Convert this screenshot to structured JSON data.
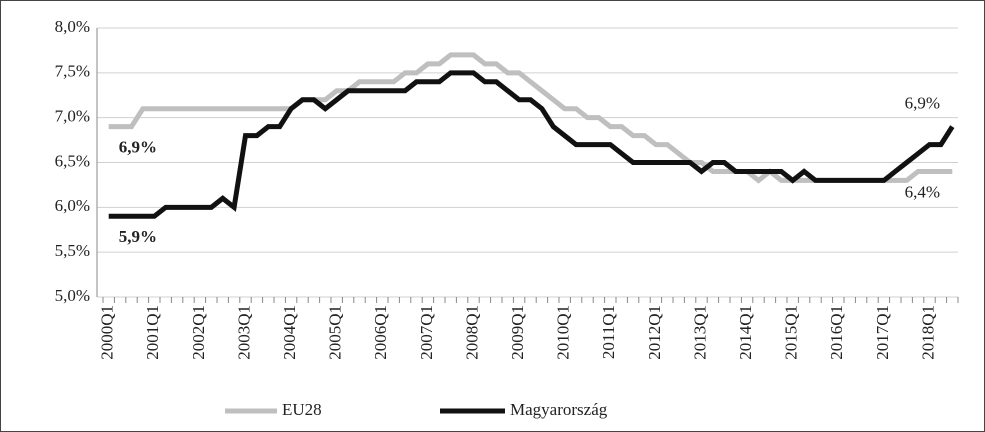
{
  "chart_data": {
    "type": "line",
    "categories": [
      "2000Q1",
      null,
      null,
      null,
      "2001Q1",
      null,
      null,
      null,
      "2002Q1",
      null,
      null,
      null,
      "2003Q1",
      null,
      null,
      null,
      "2004Q1",
      null,
      null,
      null,
      "2005Q1",
      null,
      null,
      null,
      "2006Q1",
      null,
      null,
      null,
      "2007Q1",
      null,
      null,
      null,
      "2008Q1",
      null,
      null,
      null,
      "2009Q1",
      null,
      null,
      null,
      "2010Q1",
      null,
      null,
      null,
      "2011Q1",
      null,
      null,
      null,
      "2012Q1",
      null,
      null,
      null,
      "2013Q1",
      null,
      null,
      null,
      "2014Q1",
      null,
      null,
      null,
      "2015Q1",
      null,
      null,
      null,
      "2016Q1",
      null,
      null,
      null,
      "2017Q1",
      null,
      null,
      null,
      "2018Q1",
      null,
      null
    ],
    "series": [
      {
        "name": "EU28",
        "color": "#bfbfbf",
        "values": [
          6.9,
          6.9,
          6.9,
          7.1,
          7.1,
          7.1,
          7.1,
          7.1,
          7.1,
          7.1,
          7.1,
          7.1,
          7.1,
          7.1,
          7.1,
          7.1,
          7.1,
          7.2,
          7.2,
          7.2,
          7.3,
          7.3,
          7.4,
          7.4,
          7.4,
          7.4,
          7.5,
          7.5,
          7.6,
          7.6,
          7.7,
          7.7,
          7.7,
          7.6,
          7.6,
          7.5,
          7.5,
          7.4,
          7.3,
          7.2,
          7.1,
          7.1,
          7.0,
          7.0,
          6.9,
          6.9,
          6.8,
          6.8,
          6.7,
          6.7,
          6.6,
          6.5,
          6.5,
          6.4,
          6.4,
          6.4,
          6.4,
          6.3,
          6.4,
          6.3,
          6.3,
          6.3,
          6.3,
          6.3,
          6.3,
          6.3,
          6.3,
          6.3,
          6.3,
          6.3,
          6.3,
          6.4,
          6.4,
          6.4,
          6.4
        ],
        "value_labels": [
          "6,9%",
          null,
          null,
          null,
          null,
          null,
          null,
          null,
          null,
          null,
          null,
          null,
          null,
          null,
          null,
          null,
          null,
          null,
          null,
          null,
          null,
          null,
          null,
          null,
          null,
          null,
          null,
          null,
          null,
          null,
          null,
          null,
          null,
          null,
          null,
          null,
          null,
          null,
          null,
          null,
          null,
          null,
          null,
          null,
          null,
          null,
          null,
          null,
          null,
          null,
          null,
          null,
          null,
          null,
          null,
          null,
          null,
          null,
          null,
          null,
          null,
          null,
          null,
          null,
          null,
          null,
          null,
          null,
          null,
          null,
          null,
          null,
          null,
          null,
          "6,4%"
        ]
      },
      {
        "name": "Magyarország",
        "color": "#111111",
        "values": [
          5.9,
          5.9,
          5.9,
          5.9,
          5.9,
          6.0,
          6.0,
          6.0,
          6.0,
          6.0,
          6.1,
          6.0,
          6.8,
          6.8,
          6.9,
          6.9,
          7.1,
          7.2,
          7.2,
          7.1,
          7.2,
          7.3,
          7.3,
          7.3,
          7.3,
          7.3,
          7.3,
          7.4,
          7.4,
          7.4,
          7.5,
          7.5,
          7.5,
          7.4,
          7.4,
          7.3,
          7.2,
          7.2,
          7.1,
          6.9,
          6.8,
          6.7,
          6.7,
          6.7,
          6.7,
          6.6,
          6.5,
          6.5,
          6.5,
          6.5,
          6.5,
          6.5,
          6.4,
          6.5,
          6.5,
          6.4,
          6.4,
          6.4,
          6.4,
          6.4,
          6.3,
          6.4,
          6.3,
          6.3,
          6.3,
          6.3,
          6.3,
          6.3,
          6.3,
          6.4,
          6.5,
          6.6,
          6.7,
          6.7,
          6.9
        ],
        "value_labels": [
          "5,9%",
          null,
          null,
          null,
          null,
          null,
          null,
          null,
          null,
          null,
          null,
          null,
          null,
          null,
          null,
          null,
          null,
          null,
          null,
          null,
          null,
          null,
          null,
          null,
          null,
          null,
          null,
          null,
          null,
          null,
          null,
          null,
          null,
          null,
          null,
          null,
          null,
          null,
          null,
          null,
          null,
          null,
          null,
          null,
          null,
          null,
          null,
          null,
          null,
          null,
          null,
          null,
          null,
          null,
          null,
          null,
          null,
          null,
          null,
          null,
          null,
          null,
          null,
          null,
          null,
          null,
          null,
          null,
          null,
          null,
          null,
          null,
          null,
          null,
          "6,9%"
        ]
      }
    ],
    "ylim": [
      5,
      8
    ],
    "yticks": [
      {
        "value": 5,
        "label": "5,0%"
      },
      {
        "value": 5.5,
        "label": "5,5%"
      },
      {
        "value": 6,
        "label": "6,0%"
      },
      {
        "value": 6.5,
        "label": "6,5%"
      },
      {
        "value": 7,
        "label": "7,0%"
      },
      {
        "value": 7.5,
        "label": "7,5%"
      },
      {
        "value": 8,
        "label": "8,0%"
      }
    ],
    "grid": true,
    "legend": "bottom"
  }
}
